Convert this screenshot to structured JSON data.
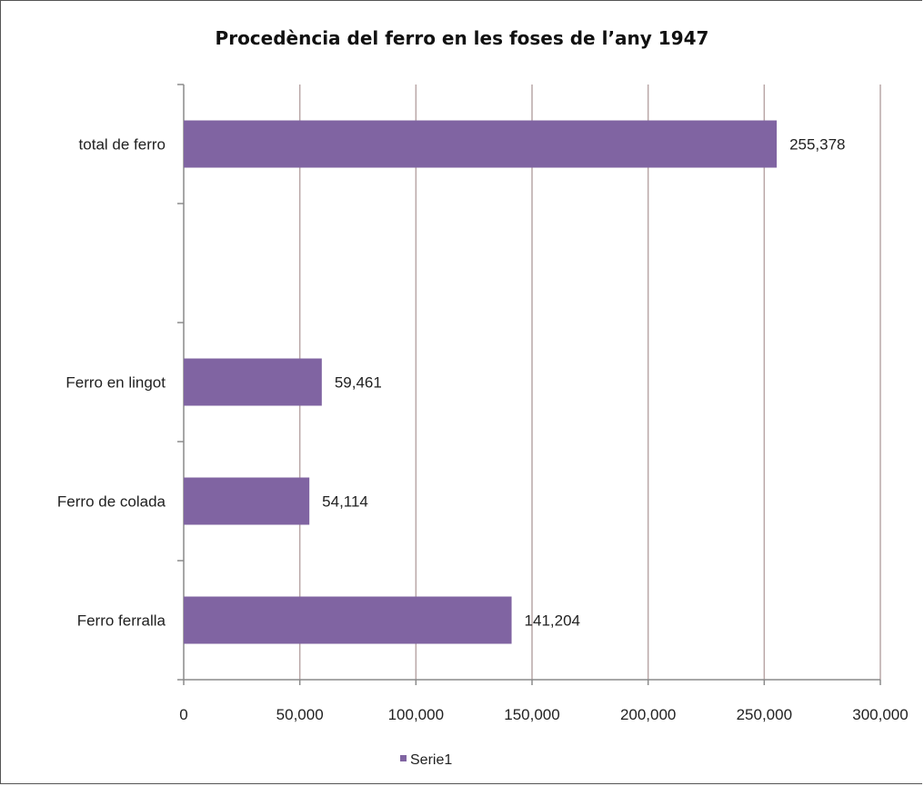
{
  "chart_data": {
    "type": "bar",
    "orientation": "horizontal",
    "title": "Procedència del ferro en les foses de l’any 1947",
    "categories": [
      "total de ferro",
      "",
      "Ferro en lingot",
      "Ferro de colada",
      "Ferro ferralla"
    ],
    "series": [
      {
        "name": "Serie1",
        "values": [
          255378,
          null,
          59461,
          54114,
          141204
        ],
        "labels": [
          "255,378",
          "",
          "59,461",
          "54,114",
          "141,204"
        ]
      }
    ],
    "xlim": [
      0,
      300000
    ],
    "xticks": [
      "0",
      "50,000",
      "100,000",
      "150,000",
      "200,000",
      "250,000",
      "300,000"
    ],
    "xtick_values": [
      0,
      50000,
      100000,
      150000,
      200000,
      250000,
      300000
    ],
    "grid": "vertical",
    "legend": "bottom",
    "colors": {
      "bar": "#8064a2",
      "grid": "#b9a7a7",
      "axis": "#8a8a8a"
    }
  }
}
